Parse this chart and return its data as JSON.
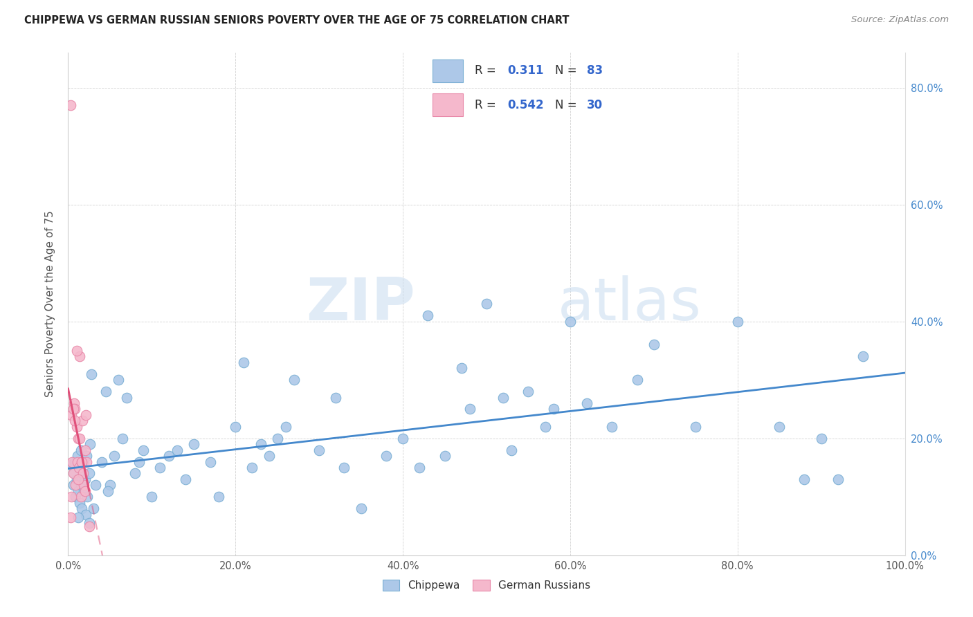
{
  "title": "CHIPPEWA VS GERMAN RUSSIAN SENIORS POVERTY OVER THE AGE OF 75 CORRELATION CHART",
  "source": "Source: ZipAtlas.com",
  "ylabel": "Seniors Poverty Over the Age of 75",
  "xlim": [
    0.0,
    1.0
  ],
  "ylim": [
    0.0,
    0.86
  ],
  "xticks": [
    0.0,
    0.2,
    0.4,
    0.6,
    0.8,
    1.0
  ],
  "yticks": [
    0.0,
    0.2,
    0.4,
    0.6,
    0.8
  ],
  "xticklabels": [
    "0.0%",
    "20.0%",
    "40.0%",
    "60.0%",
    "80.0%",
    "100.0%"
  ],
  "right_yticklabels": [
    "0.0%",
    "20.0%",
    "40.0%",
    "60.0%",
    "80.0%"
  ],
  "chippewa_R": "0.311",
  "chippewa_N": "83",
  "german_russian_R": "0.542",
  "german_russian_N": "30",
  "chippewa_scatter_color": "#adc8e8",
  "chippewa_edge_color": "#7aafd4",
  "german_russian_scatter_color": "#f5b8cc",
  "german_russian_edge_color": "#e888a8",
  "chippewa_line_color": "#4488cc",
  "german_russian_line_color": "#e0507a",
  "legend_value_color": "#3366cc",
  "legend_label_color": "#333333",
  "right_axis_color": "#4488cc",
  "watermark_color": "#ddeeff",
  "watermark_text": "ZIPatlas",
  "chippewa_x": [
    0.004,
    0.006,
    0.007,
    0.008,
    0.009,
    0.01,
    0.011,
    0.012,
    0.013,
    0.014,
    0.015,
    0.015,
    0.016,
    0.017,
    0.018,
    0.019,
    0.02,
    0.021,
    0.022,
    0.023,
    0.025,
    0.026,
    0.028,
    0.03,
    0.033,
    0.04,
    0.045,
    0.05,
    0.055,
    0.06,
    0.065,
    0.07,
    0.08,
    0.085,
    0.09,
    0.1,
    0.11,
    0.12,
    0.13,
    0.14,
    0.15,
    0.17,
    0.18,
    0.2,
    0.21,
    0.22,
    0.23,
    0.24,
    0.25,
    0.26,
    0.27,
    0.3,
    0.32,
    0.33,
    0.35,
    0.38,
    0.4,
    0.42,
    0.43,
    0.45,
    0.47,
    0.48,
    0.5,
    0.52,
    0.53,
    0.55,
    0.57,
    0.58,
    0.6,
    0.62,
    0.65,
    0.68,
    0.7,
    0.75,
    0.8,
    0.85,
    0.88,
    0.9,
    0.92,
    0.95,
    0.012,
    0.025,
    0.048
  ],
  "chippewa_y": [
    0.155,
    0.12,
    0.14,
    0.16,
    0.1,
    0.13,
    0.17,
    0.11,
    0.15,
    0.09,
    0.12,
    0.18,
    0.08,
    0.14,
    0.16,
    0.11,
    0.13,
    0.07,
    0.17,
    0.1,
    0.14,
    0.19,
    0.31,
    0.08,
    0.12,
    0.16,
    0.28,
    0.12,
    0.17,
    0.3,
    0.2,
    0.27,
    0.14,
    0.16,
    0.18,
    0.1,
    0.15,
    0.17,
    0.18,
    0.13,
    0.19,
    0.16,
    0.1,
    0.22,
    0.33,
    0.15,
    0.19,
    0.17,
    0.2,
    0.22,
    0.3,
    0.18,
    0.27,
    0.15,
    0.08,
    0.17,
    0.2,
    0.15,
    0.41,
    0.17,
    0.32,
    0.25,
    0.43,
    0.27,
    0.18,
    0.28,
    0.22,
    0.25,
    0.4,
    0.26,
    0.22,
    0.3,
    0.36,
    0.22,
    0.4,
    0.22,
    0.13,
    0.2,
    0.13,
    0.34,
    0.065,
    0.055,
    0.11
  ],
  "german_russian_x": [
    0.003,
    0.004,
    0.005,
    0.006,
    0.007,
    0.008,
    0.009,
    0.01,
    0.011,
    0.012,
    0.013,
    0.014,
    0.015,
    0.016,
    0.017,
    0.018,
    0.019,
    0.02,
    0.021,
    0.022,
    0.003,
    0.004,
    0.006,
    0.008,
    0.01,
    0.012,
    0.014,
    0.016,
    0.02,
    0.025
  ],
  "german_russian_y": [
    0.77,
    0.24,
    0.16,
    0.14,
    0.26,
    0.25,
    0.12,
    0.22,
    0.16,
    0.2,
    0.15,
    0.34,
    0.1,
    0.16,
    0.23,
    0.14,
    0.12,
    0.18,
    0.24,
    0.16,
    0.065,
    0.1,
    0.25,
    0.23,
    0.35,
    0.13,
    0.2,
    0.16,
    0.11,
    0.05
  ]
}
